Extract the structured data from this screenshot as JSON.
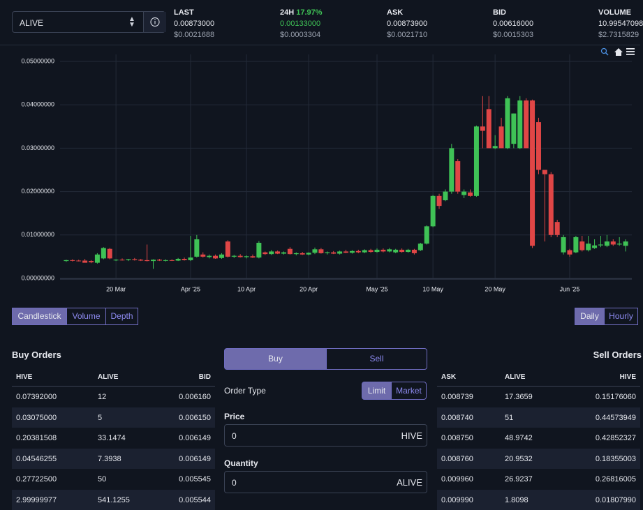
{
  "pair": "ALIVE",
  "stats": [
    {
      "label": "LAST",
      "value": "0.00873000",
      "usd": "$0.0021688"
    },
    {
      "label": "24H",
      "change": "17.97%",
      "value": "0.00133000",
      "usd": "$0.0003304"
    },
    {
      "label": "ASK",
      "value": "0.00873900",
      "usd": "$0.0021710"
    },
    {
      "label": "BID",
      "value": "0.00616000",
      "usd": "$0.0015303"
    },
    {
      "label": "VOLUME",
      "value": "10.99547098",
      "usd": "$2.7315829"
    }
  ],
  "chart_data": {
    "type": "candlestick",
    "x": [
      "2025-03-12",
      "2025-03-13",
      "2025-03-14",
      "2025-03-15",
      "2025-03-16",
      "2025-03-17",
      "2025-03-18",
      "2025-03-19",
      "2025-03-20",
      "2025-03-21",
      "2025-03-22",
      "2025-03-23",
      "2025-03-24",
      "2025-03-25",
      "2025-03-26",
      "2025-03-27",
      "2025-03-28",
      "2025-03-29",
      "2025-03-30",
      "2025-03-31",
      "2025-04-01",
      "2025-04-02",
      "2025-04-03",
      "2025-04-04",
      "2025-04-05",
      "2025-04-06",
      "2025-04-07",
      "2025-04-08",
      "2025-04-09",
      "2025-04-10",
      "2025-04-11",
      "2025-04-12",
      "2025-04-13",
      "2025-04-14",
      "2025-04-15",
      "2025-04-16",
      "2025-04-17",
      "2025-04-18",
      "2025-04-19",
      "2025-04-20",
      "2025-04-21",
      "2025-04-22",
      "2025-04-23",
      "2025-04-24",
      "2025-04-25",
      "2025-04-26",
      "2025-04-27",
      "2025-04-28",
      "2025-04-29",
      "2025-04-30",
      "2025-05-01",
      "2025-05-02",
      "2025-05-03",
      "2025-05-04",
      "2025-05-05",
      "2025-05-06",
      "2025-05-07",
      "2025-05-08",
      "2025-05-09",
      "2025-05-10",
      "2025-05-11",
      "2025-05-12",
      "2025-05-13",
      "2025-05-14",
      "2025-05-15",
      "2025-05-16",
      "2025-05-17",
      "2025-05-18",
      "2025-05-19",
      "2025-05-20",
      "2025-05-21",
      "2025-05-22",
      "2025-05-23",
      "2025-05-24",
      "2025-05-25",
      "2025-05-26",
      "2025-05-27",
      "2025-05-28",
      "2025-05-29",
      "2025-05-30",
      "2025-05-31",
      "2025-06-01",
      "2025-06-02",
      "2025-06-03",
      "2025-06-04",
      "2025-06-05",
      "2025-06-06",
      "2025-06-07",
      "2025-06-08",
      "2025-06-09",
      "2025-06-10"
    ],
    "open": [
      0.004,
      0.0042,
      0.0041,
      0.0041,
      0.004,
      0.0036,
      0.0046,
      0.0068,
      0.0042,
      0.0043,
      0.0042,
      0.0044,
      0.0043,
      0.0042,
      0.004,
      0.0043,
      0.0041,
      0.0042,
      0.0041,
      0.0045,
      0.0042,
      0.005,
      0.0055,
      0.0049,
      0.0052,
      0.0047,
      0.0085,
      0.005,
      0.0052,
      0.0049,
      0.0051,
      0.0048,
      0.006,
      0.0056,
      0.0062,
      0.0057,
      0.0068,
      0.0056,
      0.0058,
      0.0055,
      0.0059,
      0.0067,
      0.0058,
      0.006,
      0.0057,
      0.0062,
      0.0059,
      0.0063,
      0.006,
      0.0065,
      0.0061,
      0.0066,
      0.0062,
      0.006,
      0.0066,
      0.0061,
      0.0066,
      0.0065,
      0.008,
      0.012,
      0.019,
      0.018,
      0.02,
      0.027,
      0.0192,
      0.0198,
      0.019,
      0.035,
      0.039,
      0.03,
      0.035,
      0.03,
      0.031,
      0.03,
      0.041,
      0.041,
      0.036,
      0.025,
      0.024,
      0.013,
      0.006,
      0.0065,
      0.006,
      0.0085,
      0.0065,
      0.007,
      0.0076,
      0.0075,
      0.0085,
      0.0078,
      0.0075
    ],
    "high": [
      0.0043,
      0.0044,
      0.0043,
      0.0045,
      0.0042,
      0.0058,
      0.0072,
      0.007,
      0.0044,
      0.0046,
      0.0045,
      0.0047,
      0.0045,
      0.0078,
      0.0044,
      0.0045,
      0.0044,
      0.0044,
      0.0047,
      0.0048,
      0.0098,
      0.01,
      0.006,
      0.0055,
      0.0055,
      0.0058,
      0.0088,
      0.0054,
      0.0056,
      0.0053,
      0.0055,
      0.0086,
      0.0062,
      0.0065,
      0.0064,
      0.0062,
      0.0072,
      0.006,
      0.0061,
      0.006,
      0.0071,
      0.007,
      0.0062,
      0.0063,
      0.0064,
      0.0066,
      0.0065,
      0.0066,
      0.0067,
      0.0068,
      0.0069,
      0.0069,
      0.007,
      0.0068,
      0.0069,
      0.0068,
      0.0068,
      0.0082,
      0.0122,
      0.0192,
      0.0195,
      0.0205,
      0.031,
      0.0275,
      0.0205,
      0.0205,
      0.0352,
      0.042,
      0.042,
      0.033,
      0.037,
      0.042,
      0.038,
      0.042,
      0.0415,
      0.0412,
      0.037,
      0.025,
      0.0245,
      0.0135,
      0.01,
      0.0068,
      0.0098,
      0.0098,
      0.0098,
      0.009,
      0.0098,
      0.01,
      0.009,
      0.0095,
      0.009
    ],
    "low": [
      0.0038,
      0.0039,
      0.0039,
      0.0037,
      0.0035,
      0.0034,
      0.0044,
      0.0044,
      0.004,
      0.0041,
      0.004,
      0.0041,
      0.004,
      0.0039,
      0.0022,
      0.004,
      0.0039,
      0.004,
      0.004,
      0.0041,
      0.004,
      0.0048,
      0.0048,
      0.0046,
      0.0045,
      0.0045,
      0.0048,
      0.0047,
      0.0048,
      0.0046,
      0.0047,
      0.0046,
      0.0054,
      0.0054,
      0.0056,
      0.0055,
      0.0055,
      0.0053,
      0.0054,
      0.0053,
      0.0056,
      0.0057,
      0.0055,
      0.0056,
      0.0055,
      0.0058,
      0.0057,
      0.0058,
      0.0058,
      0.0059,
      0.0059,
      0.006,
      0.006,
      0.0058,
      0.0059,
      0.0059,
      0.0055,
      0.0063,
      0.0078,
      0.0118,
      0.016,
      0.0178,
      0.0195,
      0.0195,
      0.0185,
      0.0188,
      0.0188,
      0.03,
      0.03,
      0.0298,
      0.03,
      0.0298,
      0.03,
      0.0298,
      0.03,
      0.007,
      0.024,
      0.0085,
      0.0095,
      0.0095,
      0.0055,
      0.005,
      0.0058,
      0.0062,
      0.0062,
      0.0068,
      0.0072,
      0.0072,
      0.0075,
      0.0075,
      0.0062
    ],
    "close": [
      0.0042,
      0.0041,
      0.004,
      0.0036,
      0.0037,
      0.0055,
      0.007,
      0.0046,
      0.0043,
      0.0042,
      0.0044,
      0.0042,
      0.0041,
      0.004,
      0.0043,
      0.0041,
      0.0042,
      0.0041,
      0.0045,
      0.0042,
      0.0048,
      0.009,
      0.005,
      0.0052,
      0.0046,
      0.0055,
      0.005,
      0.0052,
      0.0049,
      0.0051,
      0.0048,
      0.0082,
      0.0056,
      0.0062,
      0.0057,
      0.006,
      0.0056,
      0.0058,
      0.0055,
      0.0059,
      0.0067,
      0.0058,
      0.006,
      0.0057,
      0.0062,
      0.0059,
      0.0063,
      0.006,
      0.0065,
      0.0061,
      0.0066,
      0.0062,
      0.0067,
      0.0066,
      0.0061,
      0.0066,
      0.0058,
      0.008,
      0.012,
      0.019,
      0.0167,
      0.02,
      0.03,
      0.02,
      0.02,
      0.019,
      0.035,
      0.034,
      0.03,
      0.0305,
      0.03,
      0.0415,
      0.038,
      0.041,
      0.03,
      0.0075,
      0.025,
      0.024,
      0.01,
      0.01,
      0.0095,
      0.0055,
      0.0095,
      0.0065,
      0.008,
      0.0076,
      0.0078,
      0.0085,
      0.0078,
      0.008,
      0.0085
    ],
    "up_color": "#3fc256",
    "down_color": "#e04646",
    "xlim": [
      "2025-03-11",
      "2025-06-11"
    ],
    "xticks": [
      {
        "value": "2025-03-20",
        "label": "20 Mar"
      },
      {
        "value": "2025-04-01",
        "label": "Apr '25"
      },
      {
        "value": "2025-04-10",
        "label": "10 Apr"
      },
      {
        "value": "2025-04-20",
        "label": "20 Apr"
      },
      {
        "value": "2025-05-01",
        "label": "May '25"
      },
      {
        "value": "2025-05-10",
        "label": "10 May"
      },
      {
        "value": "2025-05-20",
        "label": "20 May"
      },
      {
        "value": "2025-06-01",
        "label": "Jun '25"
      }
    ],
    "ylim": [
      0,
      0.05
    ],
    "yticks": [
      {
        "value": 0,
        "label": "0.00000000"
      },
      {
        "value": 0.01,
        "label": "0.01000000"
      },
      {
        "value": 0.02,
        "label": "0.02000000"
      },
      {
        "value": 0.03,
        "label": "0.03000000"
      },
      {
        "value": 0.04,
        "label": "0.04000000"
      },
      {
        "value": 0.05,
        "label": "0.05000000"
      }
    ],
    "grid": true
  },
  "chart_tabs": [
    "Candlestick",
    "Volume",
    "Depth"
  ],
  "interval_tabs": [
    "Daily",
    "Hourly"
  ],
  "buy_orders": {
    "title": "Buy Orders",
    "headers": [
      "HIVE",
      "ALIVE",
      "BID"
    ],
    "rows": [
      [
        "0.07392000",
        "12",
        "0.006160"
      ],
      [
        "0.03075000",
        "5",
        "0.006150"
      ],
      [
        "0.20381508",
        "33.1474",
        "0.006149"
      ],
      [
        "0.04546255",
        "7.3938",
        "0.006149"
      ],
      [
        "0.27722500",
        "50",
        "0.005545"
      ],
      [
        "2.99999977",
        "541.1255",
        "0.005544"
      ]
    ]
  },
  "sell_orders": {
    "title": "Sell Orders",
    "headers": [
      "ASK",
      "ALIVE",
      "HIVE"
    ],
    "rows": [
      [
        "0.008739",
        "17.3659",
        "0.15176060"
      ],
      [
        "0.008740",
        "51",
        "0.44573949"
      ],
      [
        "0.008750",
        "48.9742",
        "0.42852327"
      ],
      [
        "0.008760",
        "20.9532",
        "0.18355003"
      ],
      [
        "0.009960",
        "26.9237",
        "0.26816005"
      ],
      [
        "0.009990",
        "1.8098",
        "0.01807990"
      ]
    ]
  },
  "form": {
    "tabs": [
      "Buy",
      "Sell"
    ],
    "order_type": "Order Type",
    "order_options": [
      "Limit",
      "Market"
    ],
    "price_label": "Price",
    "price_value": "0",
    "price_unit": "HIVE",
    "quantity_label": "Quantity",
    "quantity_value": "0",
    "quantity_unit": "ALIVE"
  }
}
